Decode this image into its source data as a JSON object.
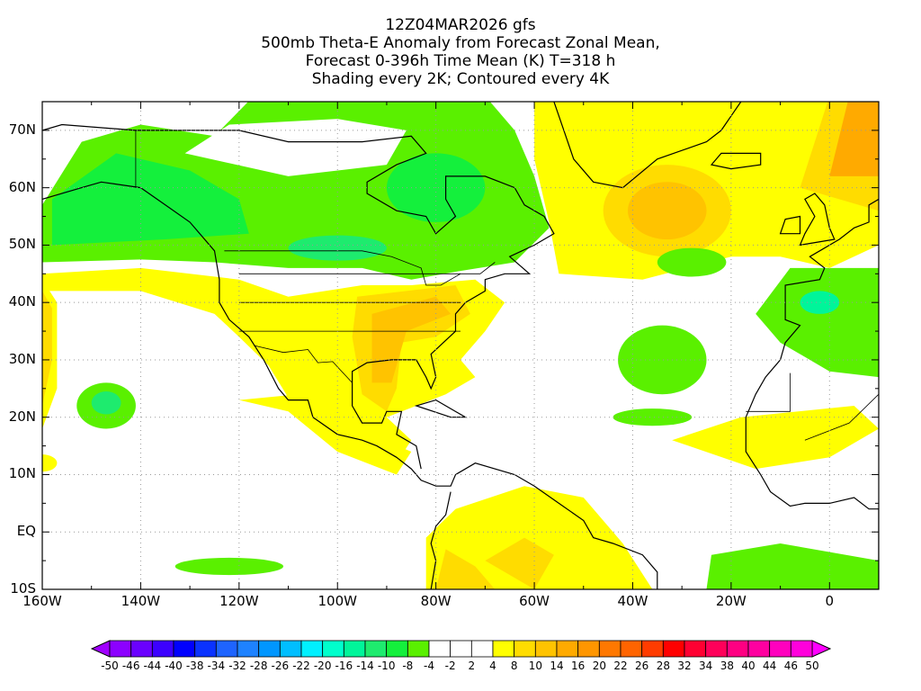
{
  "title": {
    "line1": "12Z04MAR2026 gfs",
    "line2": "500mb Theta-E Anomaly from Forecast Zonal Mean,",
    "line3": "Forecast 0-396h Time Mean (K) T=318 h",
    "line4": "Shading every 2K; Contoured every 4K"
  },
  "axes": {
    "lon_labels": [
      "160W",
      "140W",
      "120W",
      "100W",
      "80W",
      "60W",
      "40W",
      "20W",
      "0"
    ],
    "lat_labels": [
      "10S",
      "EQ",
      "10N",
      "20N",
      "30N",
      "40N",
      "50N",
      "60N",
      "70N"
    ]
  },
  "colorbar": {
    "labels": [
      "-50",
      "-46",
      "-44",
      "-40",
      "-38",
      "-34",
      "-32",
      "-28",
      "-26",
      "-22",
      "-20",
      "-16",
      "-14",
      "-10",
      "-8",
      "-4",
      "-2",
      "2",
      "4",
      "8",
      "10",
      "14",
      "16",
      "20",
      "22",
      "26",
      "28",
      "32",
      "34",
      "38",
      "40",
      "44",
      "46",
      "50"
    ],
    "colors": [
      "#8c00ff",
      "#6a00ff",
      "#3c00ff",
      "#0000ff",
      "#0a32ff",
      "#1e64ff",
      "#1e82ff",
      "#0096ff",
      "#00beff",
      "#00f0ff",
      "#00ffcc",
      "#00f59a",
      "#1eeb6e",
      "#14f03c",
      "#5af000",
      "#ffffff",
      "#ffffff",
      "#ffffff",
      "#ffff00",
      "#ffdc00",
      "#ffc300",
      "#ffaa00",
      "#ff9600",
      "#ff7800",
      "#ff6400",
      "#ff3c00",
      "#ff0000",
      "#ff0032",
      "#ff005a",
      "#ff0082",
      "#ff00a0",
      "#ff00be",
      "#ff00dc"
    ],
    "under_color": "#a000ff",
    "over_color": "#ff00ff"
  }
}
